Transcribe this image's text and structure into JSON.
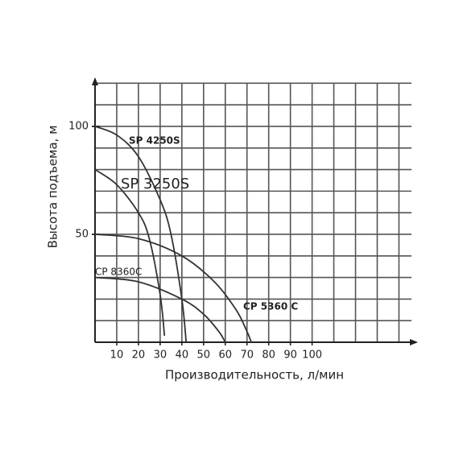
{
  "chart_data": {
    "type": "line",
    "x_label": "Производительность, л/мин",
    "y_label": "Высота подъема, м",
    "xlim": [
      0,
      148
    ],
    "ylim": [
      0,
      122
    ],
    "xticks": [
      10,
      20,
      30,
      40,
      50,
      60,
      70,
      80,
      90,
      100
    ],
    "yticks": [
      50,
      100
    ],
    "grid": true,
    "series": [
      {
        "name": "SP 4250S",
        "color": "#333333",
        "x": [
          0,
          10,
          20,
          30,
          35,
          40,
          42
        ],
        "values": [
          100,
          96,
          86,
          66,
          50,
          20,
          0
        ]
      },
      {
        "name": "SP 3250S",
        "color": "#333333",
        "x": [
          0,
          10,
          20,
          25,
          30,
          32
        ],
        "values": [
          80,
          73,
          60,
          48,
          22,
          3
        ]
      },
      {
        "name": "CP 8360C",
        "color": "#333333",
        "x": [
          0,
          20,
          40,
          50,
          57,
          60
        ],
        "values": [
          30,
          28,
          20,
          13,
          5,
          0
        ]
      },
      {
        "name": "CP 5360 C",
        "color": "#333333",
        "x": [
          0,
          20,
          40,
          55,
          65,
          70,
          72
        ],
        "values": [
          50,
          48,
          40,
          28,
          15,
          5,
          0
        ]
      }
    ]
  }
}
